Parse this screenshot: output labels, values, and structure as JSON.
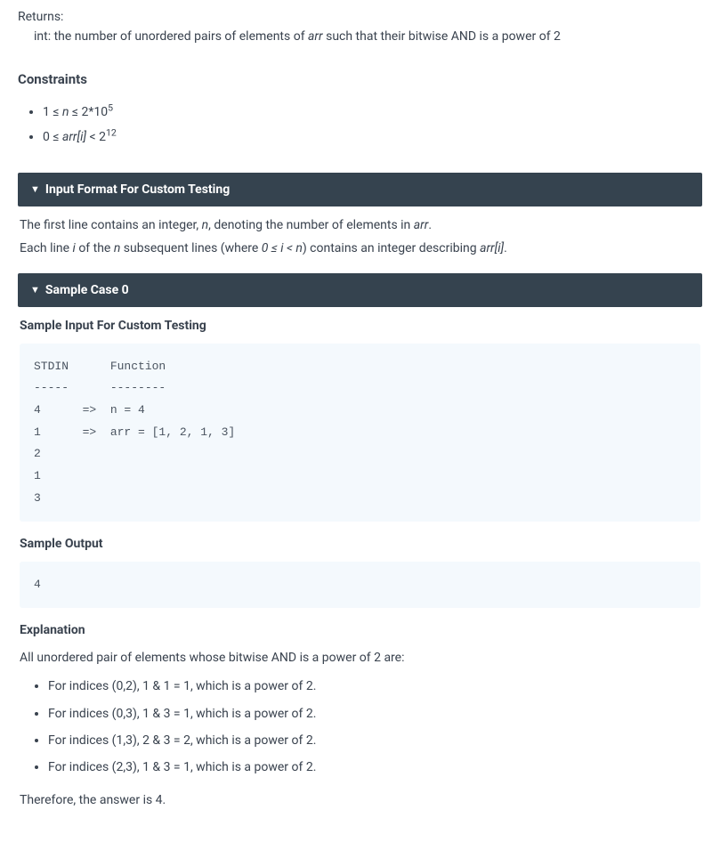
{
  "returns": {
    "label": "Returns:",
    "type_prefix": "int: the number of unordered pairs of elements of ",
    "arr_word": "arr",
    "type_suffix": " such that their bitwise AND is a power of 2"
  },
  "constraints": {
    "title": "Constraints",
    "items_html": [
      "1 ≤ <span class=\"italic\">n</span> ≤ 2*10<sup>5</sup>",
      "0 ≤ <span class=\"italic\">arr[i]</span> &lt; 2<sup>12</sup>"
    ]
  },
  "input_format": {
    "header": "Input Format For Custom Testing",
    "line1_a": "The first line contains an integer, ",
    "line1_n": "n",
    "line1_b": ", denoting the number of elements in ",
    "line1_arr": "arr",
    "line1_c": ".",
    "line2_a": "Each line ",
    "line2_i": "i",
    "line2_b": " of the ",
    "line2_n": "n",
    "line2_c": " subsequent lines (where ",
    "line2_cond": "0 ≤ i < n",
    "line2_d": ") contains an integer describing ",
    "line2_arri": "arr[i]",
    "line2_e": "."
  },
  "sample": {
    "header": "Sample Case 0",
    "input_title": "Sample Input For Custom Testing",
    "stdin_block": "STDIN      Function\n-----      --------\n4      =>  n = 4\n1      =>  arr = [1, 2, 1, 3]\n2\n1\n3",
    "output_title": "Sample Output",
    "output_block": "4",
    "explanation_title": "Explanation",
    "explanation_intro": "All unordered pair of elements whose bitwise AND is a power of 2 are:",
    "explanation_items": [
      "For indices (0,2), 1 & 1 = 1, which is a power of 2.",
      "For indices (0,3), 1 & 3 = 1, which is a power of 2.",
      "For indices (1,3), 2 & 3 = 2, which is a power of 2.",
      "For indices (2,3), 1 & 3 = 1, which is a power of 2."
    ],
    "explanation_outro": "Therefore, the answer is 4."
  },
  "colors": {
    "header_bg": "#35434f",
    "header_text": "#ffffff",
    "body_text": "#39424e",
    "code_bg": "#f4f9fd",
    "code_text": "#4a5460",
    "page_bg": "#ffffff"
  }
}
